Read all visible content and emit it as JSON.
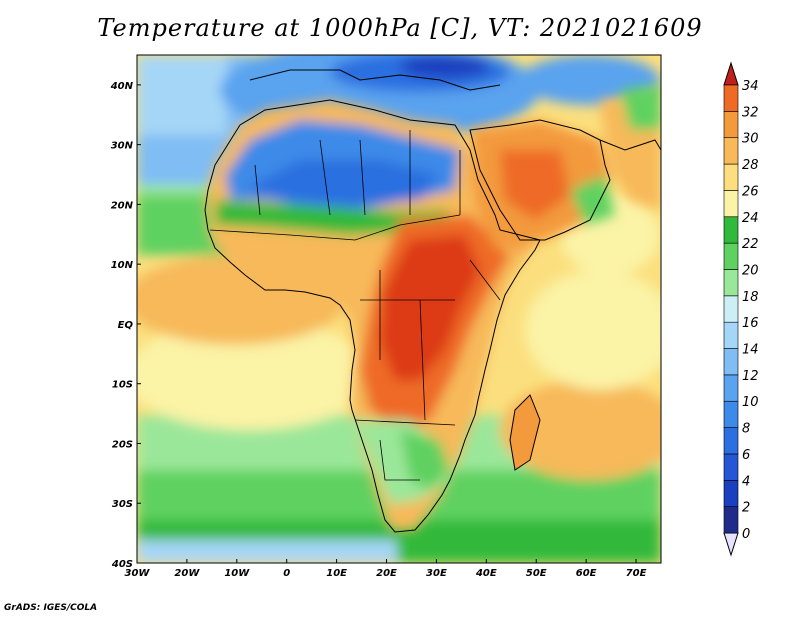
{
  "title": "Temperature at 1000hPa [C], VT: 2021021609",
  "credit": "GrADS: IGES/COLA",
  "map": {
    "region": "Africa and Arabian Peninsula",
    "variable": "Temperature at 1000hPa",
    "units": "C",
    "valid_time": "2021021609",
    "lon_range": [
      -30,
      75
    ],
    "lat_range": [
      -40,
      45
    ],
    "lon_ticks": [
      {
        "value": -30,
        "label": "30W"
      },
      {
        "value": -20,
        "label": "20W"
      },
      {
        "value": -10,
        "label": "10W"
      },
      {
        "value": 0,
        "label": "0"
      },
      {
        "value": 10,
        "label": "10E"
      },
      {
        "value": 20,
        "label": "20E"
      },
      {
        "value": 30,
        "label": "30E"
      },
      {
        "value": 40,
        "label": "40E"
      },
      {
        "value": 50,
        "label": "50E"
      },
      {
        "value": 60,
        "label": "60E"
      },
      {
        "value": 70,
        "label": "70E"
      }
    ],
    "lat_ticks": [
      {
        "value": 40,
        "label": "40N"
      },
      {
        "value": 30,
        "label": "30N"
      },
      {
        "value": 20,
        "label": "20N"
      },
      {
        "value": 10,
        "label": "10N"
      },
      {
        "value": 0,
        "label": "EQ"
      },
      {
        "value": -10,
        "label": "10S"
      },
      {
        "value": -20,
        "label": "20S"
      },
      {
        "value": -30,
        "label": "30S"
      },
      {
        "value": -40,
        "label": "40S"
      }
    ]
  },
  "colorbar": {
    "levels": [
      {
        "label": "0",
        "color": "#1f2a8a"
      },
      {
        "label": "2",
        "color": "#1a3fbf"
      },
      {
        "label": "4",
        "color": "#2456d6"
      },
      {
        "label": "6",
        "color": "#2c6fe0"
      },
      {
        "label": "8",
        "color": "#3d8ae8"
      },
      {
        "label": "10",
        "color": "#5aa3ef"
      },
      {
        "label": "12",
        "color": "#7fbdf4"
      },
      {
        "label": "14",
        "color": "#a6d6f7"
      },
      {
        "label": "16",
        "color": "#cceff6"
      },
      {
        "label": "18",
        "color": "#9be79a"
      },
      {
        "label": "20",
        "color": "#5fd160"
      },
      {
        "label": "22",
        "color": "#30b93b"
      },
      {
        "label": "24",
        "color": "#fbf3a6"
      },
      {
        "label": "26",
        "color": "#fbdf7e"
      },
      {
        "label": "28",
        "color": "#f7b95a"
      },
      {
        "label": "30",
        "color": "#f39a3d"
      },
      {
        "label": "32",
        "color": "#ee6a25"
      },
      {
        "label": "34",
        "color": "#dc3a15"
      }
    ],
    "under_color": "#e6e2ff",
    "over_color": "#c0201a"
  }
}
